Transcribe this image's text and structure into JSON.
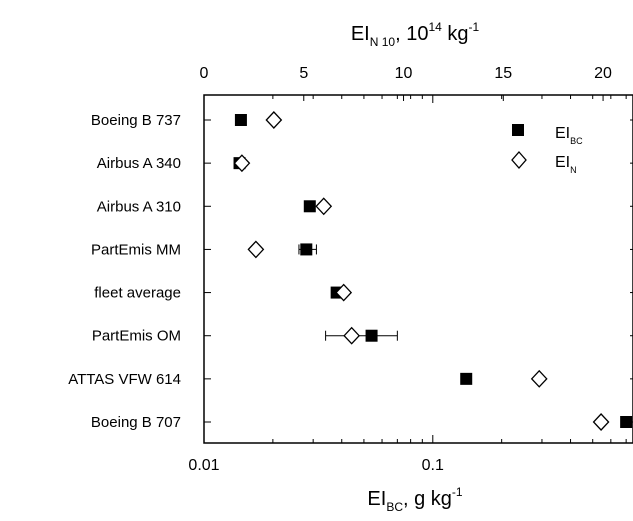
{
  "chart_data": {
    "type": "scatter",
    "categories": [
      "Boeing B 737",
      "Airbus A 340",
      "Airbus A 310",
      "PartEmis MM",
      "fleet average",
      "PartEmis OM",
      "ATTAS VFW 614",
      "Boeing B 707"
    ],
    "x_bottom": {
      "label_main": "EI",
      "label_sub": "BC",
      "label_rest": ", g kg",
      "label_sup": "-1",
      "scale": "log",
      "range": [
        0.01,
        0.75
      ],
      "ticks": [
        {
          "value": 0.01,
          "label": "0.01"
        },
        {
          "value": 0.1,
          "label": "0.1"
        }
      ]
    },
    "x_top": {
      "label_main": "EI",
      "label_sub": "N 10",
      "label_rest": ", 10",
      "label_sup1": "14",
      "label_unit": " kg",
      "label_sup2": "-1",
      "scale": "linear",
      "range": [
        0,
        21.5
      ],
      "ticks": [
        {
          "value": 0,
          "label": "0"
        },
        {
          "value": 5,
          "label": "5"
        },
        {
          "value": 10,
          "label": "10"
        },
        {
          "value": 15,
          "label": "15"
        },
        {
          "value": 20,
          "label": "20"
        }
      ]
    },
    "series": [
      {
        "name_main": "EI",
        "name_sub": "BC",
        "marker": "filled-square",
        "axis": "bottom",
        "values": [
          0.0145,
          0.0143,
          0.029,
          0.028,
          0.038,
          0.054,
          0.14,
          0.7
        ],
        "error": [
          null,
          null,
          null,
          [
            0.026,
            0.031
          ],
          null,
          [
            0.034,
            0.07
          ],
          null,
          null
        ]
      },
      {
        "name_main": "EI",
        "name_sub": "N",
        "marker": "open-diamond",
        "axis": "top",
        "values": [
          3.5,
          1.9,
          6.0,
          2.6,
          7.0,
          7.4,
          16.8,
          19.9
        ]
      }
    ],
    "legend_position": "top-right",
    "grid": false
  }
}
